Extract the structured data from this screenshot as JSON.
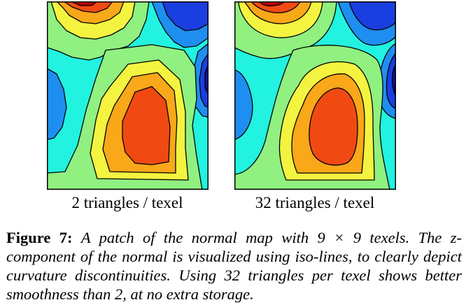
{
  "figure": {
    "panels": [
      {
        "label": "2 triangles / texel",
        "variant": "coarse"
      },
      {
        "label": "32 triangles / texel",
        "variant": "smooth"
      }
    ],
    "caption": {
      "label": "Figure 7:",
      "text": "A patch of the normal map with 9 × 9 texels. The z-component of the normal is visualized using iso-lines, to clearly depict curvature discontinuities. Using 32 triangles per texel shows better smoothness than 2, at no extra storage."
    },
    "colors": {
      "level0": "#1010a8",
      "level1": "#1a3fe0",
      "level2": "#1e8ef0",
      "level3": "#22f2e0",
      "level4": "#90f080",
      "level5": "#f4f440",
      "level6": "#f8a818",
      "level7": "#f04a12",
      "level8": "#c00000",
      "line": "#000000"
    }
  }
}
